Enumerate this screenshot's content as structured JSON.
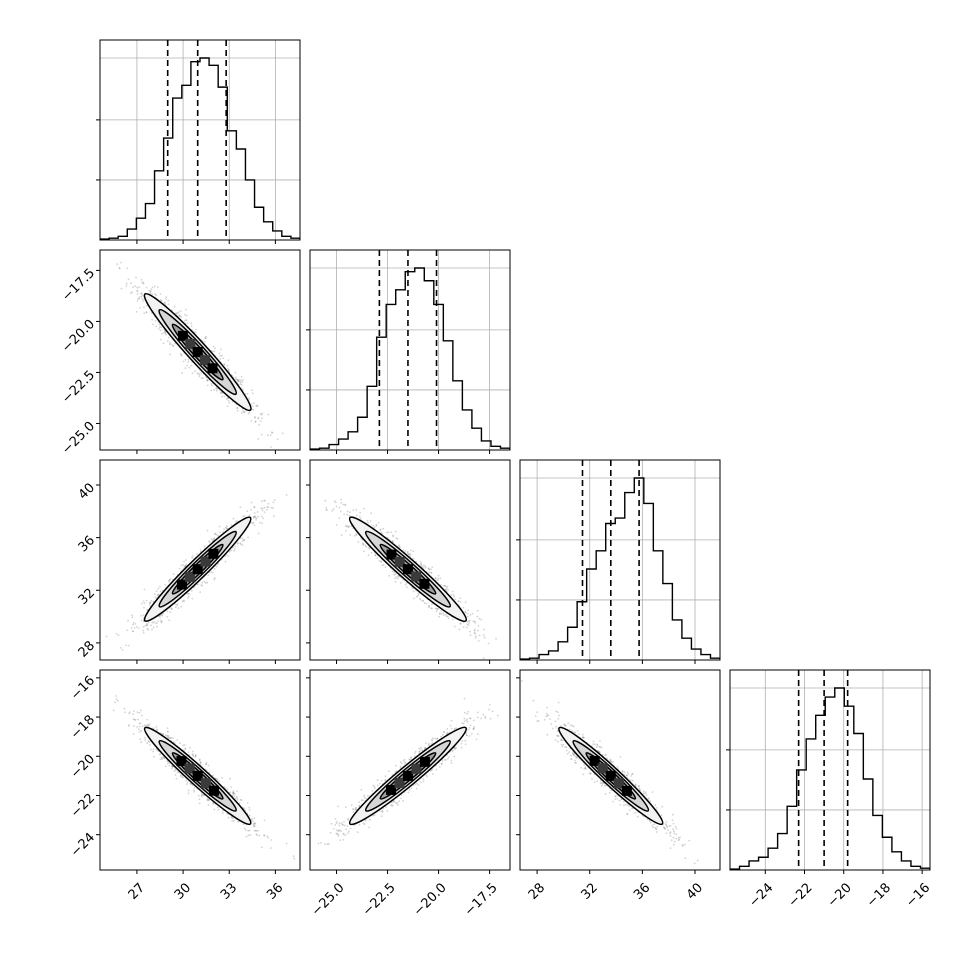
{
  "chart_data": {
    "type": "corner",
    "description_free": true,
    "grid": true,
    "parameters": [
      {
        "ticks": [
          "27",
          "30",
          "33",
          "36"
        ],
        "tick_values": [
          27,
          30,
          33,
          36
        ],
        "range": [
          24.6,
          37.6
        ],
        "quantiles": [
          29.0,
          30.95,
          32.8
        ],
        "mean": 30.95,
        "sd": 1.75
      },
      {
        "ticks": [
          "−17.5",
          "−20.0",
          "−22.5",
          "−25.0"
        ],
        "tick_values": [
          -17.5,
          -20.0,
          -22.5,
          -25.0
        ],
        "range": [
          -26.3,
          -16.5
        ],
        "quantiles": [
          -22.9,
          -21.5,
          -20.1
        ],
        "mean": -21.5,
        "sd": 1.45
      },
      {
        "ticks": [
          "28",
          "32",
          "36",
          "40"
        ],
        "tick_values": [
          28,
          32,
          36,
          40
        ],
        "range": [
          26.7,
          41.9
        ],
        "quantiles": [
          31.45,
          33.6,
          35.75
        ],
        "mean": 33.6,
        "sd": 2.0
      },
      {
        "ticks": [
          "−16",
          "−18",
          "−20",
          "−22",
          "−24"
        ],
        "tick_values": [
          -16,
          -18,
          -20,
          -22,
          -24
        ],
        "range": [
          -25.8,
          -15.6
        ],
        "quantiles": [
          -22.3,
          -21.0,
          -19.8
        ],
        "mean": -21.0,
        "sd": 1.25
      }
    ],
    "x_tick_labels": [
      [
        "27",
        "30",
        "33",
        "36"
      ],
      [
        "−25.0",
        "−22.5",
        "−20.0",
        "−17.5"
      ],
      [
        "28",
        "32",
        "36",
        "40"
      ],
      [
        "−24",
        "−22",
        "−20",
        "−18",
        "−16"
      ]
    ],
    "x_tick_values": [
      [
        27,
        30,
        33,
        36
      ],
      [
        -25.0,
        -22.5,
        -20.0,
        -17.5
      ],
      [
        28,
        32,
        36,
        40
      ],
      [
        -24,
        -22,
        -20,
        -18,
        -16
      ]
    ],
    "y_tick_labels": [
      [],
      [
        "−17.5",
        "−20.0",
        "−22.5",
        "−25.0"
      ],
      [
        "40",
        "36",
        "32",
        "28"
      ],
      [
        "−16",
        "−18",
        "−20",
        "−22",
        "−24"
      ]
    ],
    "y_tick_values": [
      [],
      [
        -17.5,
        -20.0,
        -22.5,
        -25.0
      ],
      [
        40,
        36,
        32,
        28
      ],
      [
        -16,
        -18,
        -20,
        -22,
        -24
      ]
    ],
    "correlations": {
      "1-0": -0.95,
      "2-0": 0.95,
      "2-1": -0.95,
      "3-0": -0.95,
      "3-1": 0.95,
      "3-2": -0.95
    },
    "histograms": [
      [
        0.005,
        0.01,
        0.02,
        0.06,
        0.12,
        0.2,
        0.38,
        0.56,
        0.78,
        0.85,
        0.98,
        1.0,
        0.96,
        0.84,
        0.6,
        0.5,
        0.33,
        0.18,
        0.1,
        0.05,
        0.02,
        0.01
      ],
      [
        0.005,
        0.01,
        0.03,
        0.06,
        0.1,
        0.18,
        0.35,
        0.62,
        0.8,
        0.88,
        0.98,
        1.0,
        0.93,
        0.8,
        0.6,
        0.38,
        0.22,
        0.12,
        0.05,
        0.02,
        0.01
      ],
      [
        0.005,
        0.01,
        0.03,
        0.05,
        0.1,
        0.18,
        0.32,
        0.5,
        0.6,
        0.75,
        0.78,
        0.92,
        1.0,
        0.86,
        0.6,
        0.42,
        0.22,
        0.12,
        0.06,
        0.03,
        0.01
      ],
      [
        0.005,
        0.02,
        0.05,
        0.07,
        0.12,
        0.2,
        0.35,
        0.55,
        0.72,
        0.85,
        0.95,
        1.0,
        0.9,
        0.75,
        0.5,
        0.3,
        0.18,
        0.1,
        0.05,
        0.02,
        0.01
      ]
    ]
  }
}
